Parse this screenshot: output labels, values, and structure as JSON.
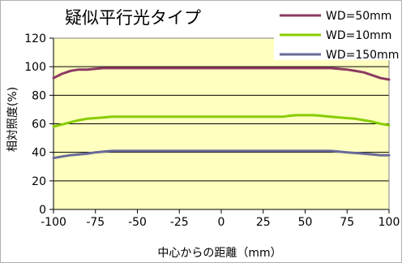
{
  "chart_data": {
    "type": "line",
    "title": "疑似平行光タイプ",
    "xlabel": "中心からの距離（mm）",
    "ylabel": "相対照度(%)",
    "xlim": [
      -100,
      100
    ],
    "ylim": [
      0,
      120
    ],
    "x_ticks": [
      "-100",
      "-75",
      "-50",
      "-25",
      "0",
      "25",
      "50",
      "75",
      "100"
    ],
    "y_ticks": [
      "0",
      "20",
      "40",
      "60",
      "80",
      "100",
      "120"
    ],
    "grid": "horizontal",
    "plot_background": "#ffffc0",
    "legend_position": "top-right",
    "series": [
      {
        "name": "WD=50mm",
        "color": "#8b3a62",
        "x": [
          -100,
          -95,
          -90,
          -85,
          -80,
          -75,
          -70,
          -65,
          -60,
          -50,
          -25,
          0,
          25,
          50,
          60,
          65,
          70,
          75,
          80,
          85,
          90,
          95,
          100
        ],
        "values": [
          92,
          95,
          97,
          98,
          98,
          98.5,
          99,
          99,
          99,
          99,
          99,
          99,
          99,
          99,
          99,
          99,
          98.5,
          98,
          97,
          96,
          94,
          92,
          91
        ]
      },
      {
        "name": "WD=10mm",
        "color": "#88cc00",
        "x": [
          -100,
          -95,
          -90,
          -85,
          -80,
          -75,
          -70,
          -65,
          -60,
          -50,
          -25,
          0,
          25,
          37,
          40,
          45,
          50,
          55,
          60,
          65,
          70,
          75,
          80,
          85,
          90,
          95,
          100
        ],
        "values": [
          58,
          59.5,
          61,
          62.5,
          63.5,
          64,
          64.5,
          65,
          65,
          65,
          65,
          65,
          65,
          65,
          65.5,
          66,
          66,
          66,
          65.5,
          65,
          64.5,
          64,
          63.5,
          62.5,
          61.5,
          60,
          59
        ]
      },
      {
        "name": "WD=150mm",
        "color": "#6a6a9a",
        "x": [
          -100,
          -95,
          -90,
          -85,
          -80,
          -75,
          -70,
          -65,
          -60,
          -50,
          -25,
          0,
          25,
          50,
          60,
          65,
          70,
          75,
          80,
          85,
          90,
          95,
          100
        ],
        "values": [
          36,
          37,
          38,
          38.5,
          39,
          40,
          40.5,
          41,
          41,
          41,
          41,
          41,
          41,
          41,
          41,
          41,
          40.5,
          40,
          39.5,
          39,
          38.5,
          38,
          38
        ]
      }
    ]
  }
}
